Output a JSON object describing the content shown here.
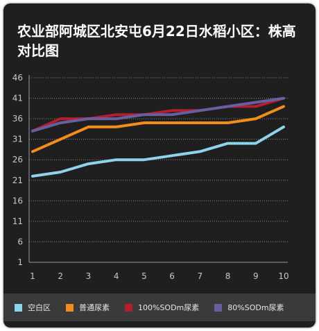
{
  "title": "农业部阿城区北安屯6月22日水稻小区：株高对比图",
  "chart_data": {
    "type": "line",
    "title": "农业部阿城区北安屯6月22日水稻小区：株高对比图",
    "categories": [
      "1",
      "2",
      "3",
      "4",
      "5",
      "6",
      "7",
      "8",
      "9",
      "10"
    ],
    "yticks": [
      1,
      6,
      11,
      16,
      21,
      26,
      31,
      36,
      41,
      46
    ],
    "ylim": [
      1,
      46
    ],
    "grid": true,
    "legend_position": "bottom",
    "series": [
      {
        "name": "空白区",
        "color": "#8dd3eb",
        "values": [
          22,
          23,
          25,
          26,
          26,
          27,
          28,
          30,
          30,
          34
        ]
      },
      {
        "name": "普通尿素",
        "color": "#f28c1c",
        "values": [
          28,
          31,
          34,
          34,
          35,
          35,
          35,
          35,
          36,
          39
        ]
      },
      {
        "name": "100%SODm尿素",
        "color": "#b41e2e",
        "values": [
          33,
          36,
          36,
          37,
          37,
          38,
          38,
          39,
          39,
          41
        ]
      },
      {
        "name": "80%SODm尿素",
        "color": "#675fa0",
        "values": [
          33,
          35,
          36,
          36,
          37,
          37,
          38,
          39,
          40,
          41
        ]
      }
    ]
  }
}
